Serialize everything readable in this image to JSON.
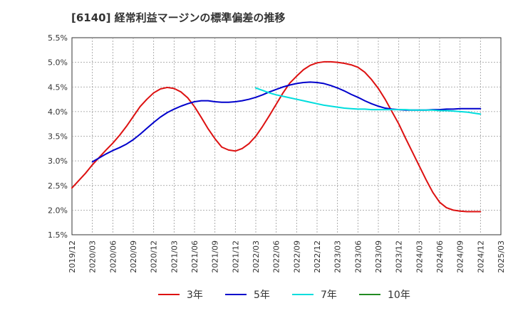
{
  "chart_data": {
    "type": "line",
    "title": "[6140]  経常利益マージンの標準偏差の推移",
    "y_axis": {
      "min": 0.015,
      "max": 0.055,
      "ticks": [
        0.015,
        0.02,
        0.025,
        0.03,
        0.035,
        0.04,
        0.045,
        0.05,
        0.055
      ],
      "tick_labels": [
        "1.5%",
        "2.0%",
        "2.5%",
        "3.0%",
        "3.5%",
        "4.0%",
        "4.5%",
        "5.0%",
        "5.5%"
      ]
    },
    "x_axis": {
      "min": "2019-12",
      "max": "2025-03",
      "tick_labels": [
        "2019/12",
        "2020/03",
        "2020/06",
        "2020/09",
        "2020/12",
        "2021/03",
        "2021/06",
        "2021/09",
        "2021/12",
        "2022/03",
        "2022/06",
        "2022/09",
        "2022/12",
        "2023/03",
        "2023/06",
        "2023/09",
        "2023/12",
        "2024/03",
        "2024/06",
        "2024/09",
        "2024/12",
        "2025/03"
      ]
    },
    "grid": true,
    "legend_position": "bottom",
    "series": [
      {
        "name": "3年",
        "color": "#dd1111",
        "points": [
          [
            "2019-12",
            0.0245
          ],
          [
            "2020-01",
            0.026
          ],
          [
            "2020-02",
            0.0275
          ],
          [
            "2020-03",
            0.0292
          ],
          [
            "2020-04",
            0.0307
          ],
          [
            "2020-05",
            0.0322
          ],
          [
            "2020-06",
            0.0336
          ],
          [
            "2020-07",
            0.0352
          ],
          [
            "2020-08",
            0.037
          ],
          [
            "2020-09",
            0.039
          ],
          [
            "2020-10",
            0.041
          ],
          [
            "2020-11",
            0.0425
          ],
          [
            "2020-12",
            0.0438
          ],
          [
            "2021-01",
            0.0446
          ],
          [
            "2021-02",
            0.0449
          ],
          [
            "2021-03",
            0.0447
          ],
          [
            "2021-04",
            0.044
          ],
          [
            "2021-05",
            0.0428
          ],
          [
            "2021-06",
            0.041
          ],
          [
            "2021-07",
            0.0388
          ],
          [
            "2021-08",
            0.0365
          ],
          [
            "2021-09",
            0.0345
          ],
          [
            "2021-10",
            0.0328
          ],
          [
            "2021-11",
            0.0322
          ],
          [
            "2021-12",
            0.032
          ],
          [
            "2022-01",
            0.0325
          ],
          [
            "2022-02",
            0.0335
          ],
          [
            "2022-03",
            0.035
          ],
          [
            "2022-04",
            0.037
          ],
          [
            "2022-05",
            0.0392
          ],
          [
            "2022-06",
            0.0415
          ],
          [
            "2022-07",
            0.0438
          ],
          [
            "2022-08",
            0.0458
          ],
          [
            "2022-09",
            0.0472
          ],
          [
            "2022-10",
            0.0485
          ],
          [
            "2022-11",
            0.0494
          ],
          [
            "2022-12",
            0.0499
          ],
          [
            "2023-01",
            0.0501
          ],
          [
            "2023-02",
            0.0501
          ],
          [
            "2023-03",
            0.05
          ],
          [
            "2023-04",
            0.0498
          ],
          [
            "2023-05",
            0.0495
          ],
          [
            "2023-06",
            0.049
          ],
          [
            "2023-07",
            0.048
          ],
          [
            "2023-08",
            0.0465
          ],
          [
            "2023-09",
            0.0447
          ],
          [
            "2023-10",
            0.0425
          ],
          [
            "2023-11",
            0.04
          ],
          [
            "2023-12",
            0.0375
          ],
          [
            "2024-01",
            0.0346
          ],
          [
            "2024-02",
            0.0318
          ],
          [
            "2024-03",
            0.029
          ],
          [
            "2024-04",
            0.0262
          ],
          [
            "2024-05",
            0.0236
          ],
          [
            "2024-06",
            0.0216
          ],
          [
            "2024-07",
            0.0205
          ],
          [
            "2024-08",
            0.02
          ],
          [
            "2024-09",
            0.0198
          ],
          [
            "2024-10",
            0.0197
          ],
          [
            "2024-11",
            0.0197
          ],
          [
            "2024-12",
            0.0197
          ]
        ]
      },
      {
        "name": "5年",
        "color": "#0000cc",
        "points": [
          [
            "2020-03",
            0.0298
          ],
          [
            "2020-04",
            0.0306
          ],
          [
            "2020-05",
            0.0314
          ],
          [
            "2020-06",
            0.0321
          ],
          [
            "2020-07",
            0.0327
          ],
          [
            "2020-08",
            0.0334
          ],
          [
            "2020-09",
            0.0343
          ],
          [
            "2020-10",
            0.0354
          ],
          [
            "2020-11",
            0.0366
          ],
          [
            "2020-12",
            0.0378
          ],
          [
            "2021-01",
            0.0389
          ],
          [
            "2021-02",
            0.0398
          ],
          [
            "2021-03",
            0.0405
          ],
          [
            "2021-04",
            0.0411
          ],
          [
            "2021-05",
            0.0416
          ],
          [
            "2021-06",
            0.042
          ],
          [
            "2021-07",
            0.0422
          ],
          [
            "2021-08",
            0.0422
          ],
          [
            "2021-09",
            0.042
          ],
          [
            "2021-10",
            0.0419
          ],
          [
            "2021-11",
            0.0419
          ],
          [
            "2021-12",
            0.042
          ],
          [
            "2022-01",
            0.0422
          ],
          [
            "2022-02",
            0.0425
          ],
          [
            "2022-03",
            0.0429
          ],
          [
            "2022-04",
            0.0434
          ],
          [
            "2022-05",
            0.044
          ],
          [
            "2022-06",
            0.0445
          ],
          [
            "2022-07",
            0.045
          ],
          [
            "2022-08",
            0.0454
          ],
          [
            "2022-09",
            0.0457
          ],
          [
            "2022-10",
            0.0459
          ],
          [
            "2022-11",
            0.046
          ],
          [
            "2022-12",
            0.0459
          ],
          [
            "2023-01",
            0.0457
          ],
          [
            "2023-02",
            0.0453
          ],
          [
            "2023-03",
            0.0448
          ],
          [
            "2023-04",
            0.0442
          ],
          [
            "2023-05",
            0.0435
          ],
          [
            "2023-06",
            0.0429
          ],
          [
            "2023-07",
            0.0422
          ],
          [
            "2023-08",
            0.0416
          ],
          [
            "2023-09",
            0.0411
          ],
          [
            "2023-10",
            0.0407
          ],
          [
            "2023-11",
            0.0405
          ],
          [
            "2023-12",
            0.0404
          ],
          [
            "2024-01",
            0.0403
          ],
          [
            "2024-02",
            0.0403
          ],
          [
            "2024-03",
            0.0403
          ],
          [
            "2024-04",
            0.0403
          ],
          [
            "2024-05",
            0.0404
          ],
          [
            "2024-06",
            0.0404
          ],
          [
            "2024-07",
            0.0405
          ],
          [
            "2024-08",
            0.0405
          ],
          [
            "2024-09",
            0.0406
          ],
          [
            "2024-10",
            0.0406
          ],
          [
            "2024-11",
            0.0406
          ],
          [
            "2024-12",
            0.0406
          ]
        ]
      },
      {
        "name": "7年",
        "color": "#00dddd",
        "points": [
          [
            "2022-03",
            0.0448
          ],
          [
            "2022-04",
            0.0443
          ],
          [
            "2022-05",
            0.0438
          ],
          [
            "2022-06",
            0.0434
          ],
          [
            "2022-07",
            0.0431
          ],
          [
            "2022-08",
            0.0428
          ],
          [
            "2022-09",
            0.0425
          ],
          [
            "2022-10",
            0.0422
          ],
          [
            "2022-11",
            0.0419
          ],
          [
            "2022-12",
            0.0416
          ],
          [
            "2023-01",
            0.0413
          ],
          [
            "2023-02",
            0.0411
          ],
          [
            "2023-03",
            0.0409
          ],
          [
            "2023-04",
            0.0407
          ],
          [
            "2023-05",
            0.0406
          ],
          [
            "2023-06",
            0.0405
          ],
          [
            "2023-07",
            0.0405
          ],
          [
            "2023-08",
            0.0404
          ],
          [
            "2023-09",
            0.0404
          ],
          [
            "2023-10",
            0.0404
          ],
          [
            "2023-11",
            0.0404
          ],
          [
            "2023-12",
            0.0404
          ],
          [
            "2024-01",
            0.0404
          ],
          [
            "2024-02",
            0.0403
          ],
          [
            "2024-03",
            0.0403
          ],
          [
            "2024-04",
            0.0403
          ],
          [
            "2024-05",
            0.0403
          ],
          [
            "2024-06",
            0.0402
          ],
          [
            "2024-07",
            0.0402
          ],
          [
            "2024-08",
            0.0401
          ],
          [
            "2024-09",
            0.04
          ],
          [
            "2024-10",
            0.0399
          ],
          [
            "2024-11",
            0.0397
          ],
          [
            "2024-12",
            0.0395
          ]
        ]
      },
      {
        "name": "10年",
        "color": "#228b22",
        "points": []
      }
    ]
  }
}
